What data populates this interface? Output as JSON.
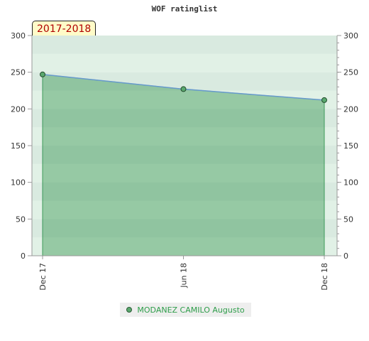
{
  "title": "WOF ratinglist",
  "season_label": "2017-2018",
  "chart_data": {
    "type": "area",
    "title": "WOF ratinglist",
    "x_labels": [
      "Dec 17",
      "Jun 18",
      "Dec 18"
    ],
    "series": [
      {
        "name": "MODANEZ CAMILO Augusto",
        "x": [
          "Dec 17",
          "Jun 18",
          "Dec 18"
        ],
        "values": [
          247,
          227,
          212
        ],
        "color": "#5aa86e"
      }
    ],
    "ylim": [
      0,
      300
    ],
    "y_ticks": [
      0,
      50,
      100,
      150,
      200,
      250,
      300
    ],
    "grid": true,
    "dual_y_axis": true,
    "legend_position": "bottom"
  },
  "legend": {
    "label": "MODANEZ CAMILO Augusto"
  },
  "colors": {
    "line": "#6699cc",
    "area": "#5aa86e",
    "marker": "#5aa86e"
  }
}
